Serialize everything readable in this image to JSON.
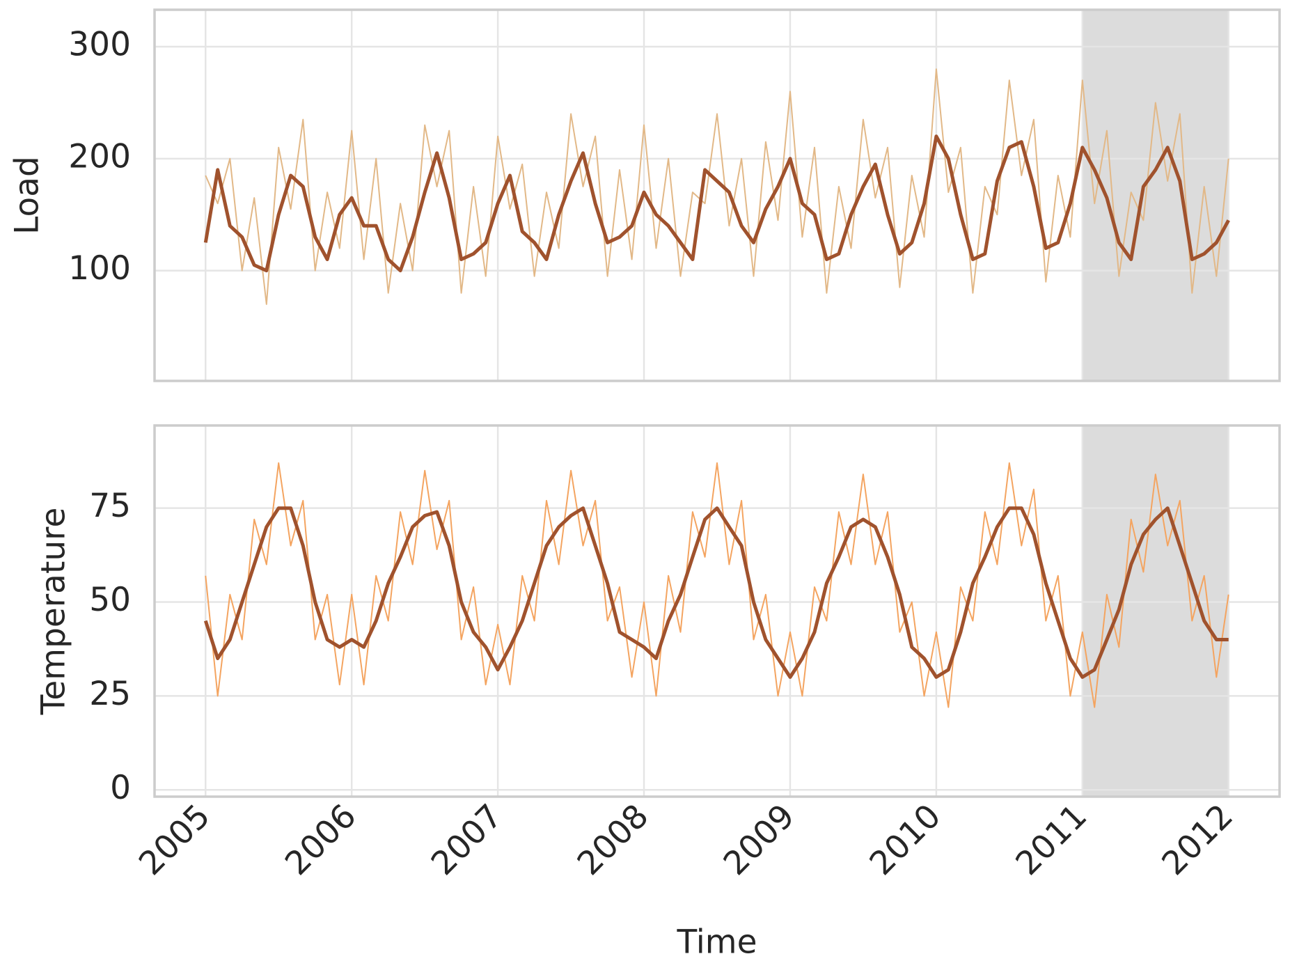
{
  "chart_data": [
    {
      "type": "line",
      "ylabel": "Load",
      "grid": true,
      "x_tick_labels": false,
      "shaded_xrange": [
        2011,
        2012
      ],
      "xlim": [
        2004.651,
        2012.349
      ],
      "xticks": [
        2005,
        2006,
        2007,
        2008,
        2009,
        2010,
        2011,
        2012
      ],
      "ylim": [
        1.5,
        333
      ],
      "yticks": [
        100,
        200,
        300
      ],
      "x": [
        2005,
        2005.083,
        2005.167,
        2005.25,
        2005.333,
        2005.417,
        2005.5,
        2005.583,
        2005.667,
        2005.75,
        2005.833,
        2005.917,
        2006,
        2006.083,
        2006.167,
        2006.25,
        2006.333,
        2006.417,
        2006.5,
        2006.583,
        2006.667,
        2006.75,
        2006.833,
        2006.917,
        2007,
        2007.083,
        2007.167,
        2007.25,
        2007.333,
        2007.417,
        2007.5,
        2007.583,
        2007.667,
        2007.75,
        2007.833,
        2007.917,
        2008,
        2008.083,
        2008.167,
        2008.25,
        2008.333,
        2008.417,
        2008.5,
        2008.583,
        2008.667,
        2008.75,
        2008.833,
        2008.917,
        2009,
        2009.083,
        2009.167,
        2009.25,
        2009.333,
        2009.417,
        2009.5,
        2009.583,
        2009.667,
        2009.75,
        2009.833,
        2009.917,
        2010,
        2010.083,
        2010.167,
        2010.25,
        2010.333,
        2010.417,
        2010.5,
        2010.583,
        2010.667,
        2010.75,
        2010.833,
        2010.917,
        2011,
        2011.083,
        2011.167,
        2011.25,
        2011.333,
        2011.417,
        2011.5,
        2011.583,
        2011.667,
        2011.75,
        2011.833,
        2011.917,
        2012
      ],
      "series": [
        {
          "color": "#e2b887",
          "width": 2,
          "values": [
            185,
            160,
            200,
            100,
            165,
            70,
            210,
            155,
            235,
            100,
            170,
            120,
            225,
            110,
            200,
            80,
            160,
            100,
            230,
            175,
            225,
            80,
            175,
            95,
            220,
            155,
            195,
            95,
            170,
            120,
            240,
            175,
            220,
            95,
            190,
            110,
            230,
            120,
            200,
            95,
            170,
            160,
            240,
            140,
            200,
            95,
            215,
            145,
            260,
            130,
            210,
            80,
            175,
            120,
            235,
            165,
            210,
            85,
            185,
            130,
            280,
            170,
            210,
            80,
            175,
            150,
            270,
            185,
            235,
            90,
            185,
            130,
            270,
            160,
            225,
            95,
            170,
            145,
            250,
            180,
            240,
            80,
            175,
            95,
            200
          ]
        },
        {
          "color": "#a0522d",
          "width": 5,
          "values": [
            125,
            190,
            140,
            130,
            105,
            100,
            150,
            185,
            175,
            130,
            110,
            150,
            165,
            140,
            140,
            110,
            100,
            130,
            170,
            205,
            165,
            110,
            115,
            125,
            160,
            185,
            135,
            125,
            110,
            150,
            180,
            205,
            160,
            125,
            130,
            140,
            170,
            150,
            140,
            125,
            110,
            190,
            180,
            170,
            140,
            125,
            155,
            175,
            200,
            160,
            150,
            110,
            115,
            150,
            175,
            195,
            150,
            115,
            125,
            160,
            220,
            200,
            150,
            110,
            115,
            180,
            210,
            215,
            175,
            120,
            125,
            160,
            210,
            190,
            165,
            125,
            110,
            175,
            190,
            210,
            180,
            110,
            115,
            125,
            145
          ]
        }
      ]
    },
    {
      "type": "line",
      "ylabel": "Temperature",
      "xlabel": "Time",
      "grid": true,
      "x_tick_labels": true,
      "shaded_xrange": [
        2011,
        2012
      ],
      "xlim": [
        2004.651,
        2012.349
      ],
      "xticks": [
        2005,
        2006,
        2007,
        2008,
        2009,
        2010,
        2011,
        2012
      ],
      "ylim": [
        -1.8,
        97
      ],
      "yticks": [
        0,
        25,
        50,
        75
      ],
      "x": [
        2005,
        2005.083,
        2005.167,
        2005.25,
        2005.333,
        2005.417,
        2005.5,
        2005.583,
        2005.667,
        2005.75,
        2005.833,
        2005.917,
        2006,
        2006.083,
        2006.167,
        2006.25,
        2006.333,
        2006.417,
        2006.5,
        2006.583,
        2006.667,
        2006.75,
        2006.833,
        2006.917,
        2007,
        2007.083,
        2007.167,
        2007.25,
        2007.333,
        2007.417,
        2007.5,
        2007.583,
        2007.667,
        2007.75,
        2007.833,
        2007.917,
        2008,
        2008.083,
        2008.167,
        2008.25,
        2008.333,
        2008.417,
        2008.5,
        2008.583,
        2008.667,
        2008.75,
        2008.833,
        2008.917,
        2009,
        2009.083,
        2009.167,
        2009.25,
        2009.333,
        2009.417,
        2009.5,
        2009.583,
        2009.667,
        2009.75,
        2009.833,
        2009.917,
        2010,
        2010.083,
        2010.167,
        2010.25,
        2010.333,
        2010.417,
        2010.5,
        2010.583,
        2010.667,
        2010.75,
        2010.833,
        2010.917,
        2011,
        2011.083,
        2011.167,
        2011.25,
        2011.333,
        2011.417,
        2011.5,
        2011.583,
        2011.667,
        2011.75,
        2011.833,
        2011.917,
        2012
      ],
      "series": [
        {
          "color": "#f4a460",
          "width": 2,
          "values": [
            57,
            25,
            52,
            40,
            72,
            60,
            87,
            65,
            77,
            40,
            52,
            28,
            52,
            28,
            57,
            45,
            74,
            60,
            85,
            64,
            77,
            40,
            54,
            28,
            44,
            28,
            57,
            45,
            77,
            60,
            85,
            65,
            77,
            45,
            54,
            30,
            50,
            25,
            57,
            42,
            74,
            62,
            87,
            60,
            77,
            40,
            52,
            25,
            42,
            25,
            54,
            45,
            74,
            60,
            84,
            60,
            74,
            42,
            50,
            25,
            42,
            22,
            54,
            45,
            74,
            60,
            87,
            65,
            80,
            45,
            57,
            25,
            42,
            22,
            52,
            38,
            72,
            58,
            84,
            65,
            77,
            45,
            57,
            30,
            52
          ]
        },
        {
          "color": "#a0522d",
          "width": 5,
          "values": [
            45,
            35,
            40,
            50,
            60,
            70,
            75,
            75,
            65,
            50,
            40,
            38,
            40,
            38,
            45,
            55,
            62,
            70,
            73,
            74,
            65,
            50,
            42,
            38,
            32,
            38,
            45,
            55,
            65,
            70,
            73,
            75,
            65,
            55,
            42,
            40,
            38,
            35,
            45,
            52,
            62,
            72,
            75,
            70,
            65,
            50,
            40,
            35,
            30,
            35,
            42,
            55,
            62,
            70,
            72,
            70,
            62,
            52,
            38,
            35,
            30,
            32,
            42,
            55,
            62,
            70,
            75,
            75,
            68,
            55,
            45,
            35,
            30,
            32,
            40,
            48,
            60,
            68,
            72,
            75,
            65,
            55,
            45,
            40,
            40
          ]
        }
      ]
    }
  ]
}
